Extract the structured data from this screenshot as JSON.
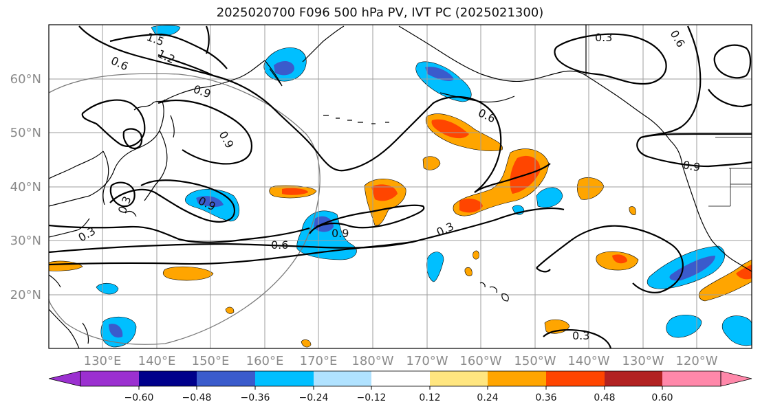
{
  "title": "2025020700 F096 500 hPa PV, IVT PC (2025021300)",
  "lat_labels": [
    "60°N",
    "50°N",
    "40°N",
    "30°N",
    "20°N"
  ],
  "lon_labels": [
    "130°E",
    "140°E",
    "150°E",
    "160°E",
    "170°E",
    "180°W",
    "170°W",
    "160°W",
    "150°W",
    "140°W",
    "130°W",
    "120°W"
  ],
  "colorbar": {
    "ticks": [
      "−0.60",
      "−0.48",
      "−0.36",
      "−0.24",
      "−0.12",
      "0.12",
      "0.24",
      "0.36",
      "0.48",
      "0.60"
    ],
    "colors": [
      "#9b30d0",
      "#00008b",
      "#3a5bcc",
      "#00bfff",
      "#b0e2ff",
      "#ffffff",
      "#ffe680",
      "#ffa500",
      "#ff4500",
      "#b22222",
      "#ff88aa"
    ]
  },
  "contour_labels": [
    "1.5",
    "1.2",
    "0.6",
    "0.9",
    "0.9",
    "0.9",
    "0.3",
    "0.6",
    "0.9",
    "0.3",
    "0.6",
    "0.3",
    "0.3",
    "0.6",
    "0.9",
    "0.3"
  ],
  "colors": {
    "grid": "#9e9e9e",
    "coast": "#000000",
    "contour": "#000000"
  }
}
